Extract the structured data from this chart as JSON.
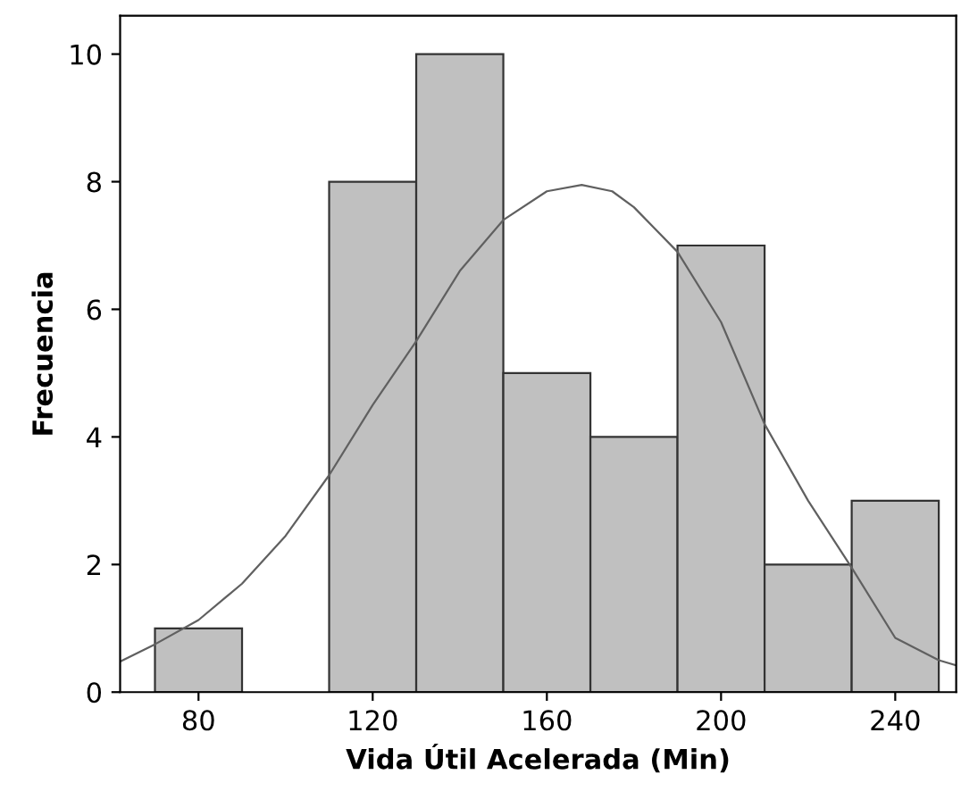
{
  "chart_data": {
    "type": "histogram",
    "xlabel": "Vida Útil Acelerada (Min)",
    "ylabel": "Frecuencia",
    "xlim": [
      62,
      254
    ],
    "xticks": [
      80,
      120,
      160,
      200,
      240
    ],
    "ylim": [
      0,
      10.6
    ],
    "yticks": [
      0,
      2,
      4,
      6,
      8,
      10
    ],
    "grid": false,
    "legend": false,
    "series": [
      {
        "color": "#c0c0c0",
        "bins": [
          70,
          90,
          110,
          130,
          150,
          170,
          190,
          210,
          230,
          250
        ],
        "values": [
          1,
          0,
          8,
          10,
          5,
          4,
          7,
          2,
          3
        ]
      },
      {
        "type": "line",
        "color": "#606060",
        "x": [
          62,
          70,
          80,
          90,
          100,
          110,
          120,
          130,
          140,
          150,
          160,
          168,
          175,
          180,
          190,
          200,
          210,
          220,
          230,
          240,
          250,
          254
        ],
        "values": [
          0.48,
          0.75,
          1.13,
          1.7,
          2.45,
          3.4,
          4.5,
          5.5,
          6.6,
          7.4,
          7.85,
          7.95,
          7.85,
          7.6,
          6.9,
          5.8,
          4.2,
          3.0,
          1.95,
          0.85,
          0.5,
          0.42
        ]
      }
    ]
  }
}
